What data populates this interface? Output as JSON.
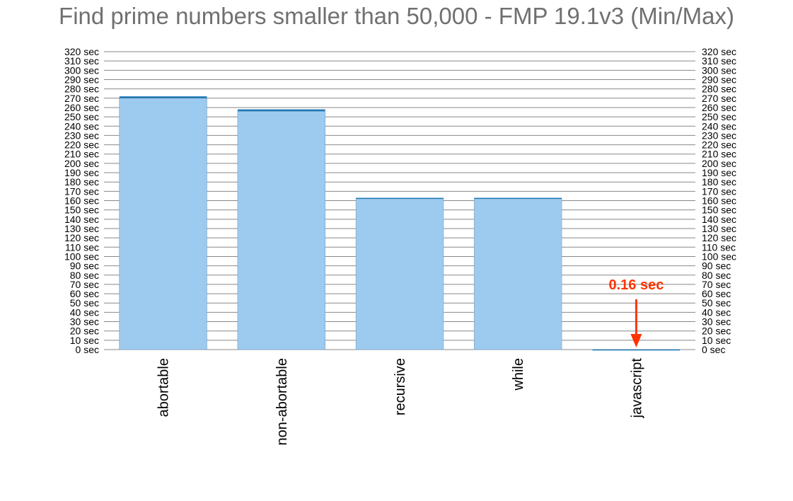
{
  "chart_data": {
    "type": "bar",
    "title": "Find prime numbers smaller than 50,000 - FMP 19.1v3 (Min/Max)",
    "xlabel": "",
    "ylabel": "",
    "categories": [
      "abortable",
      "non-abortable",
      "recursive",
      "while",
      "javascript"
    ],
    "series": [
      {
        "values": [
          270,
          256,
          162,
          162,
          0.16
        ]
      },
      {
        "values": [
          272,
          258,
          163,
          163,
          0.16
        ]
      }
    ],
    "ylim": [
      0,
      320
    ],
    "ytick_step": 10,
    "ytick_suffix": " sec",
    "ytick_labels": [
      "0 sec",
      "10 sec",
      "20 sec",
      "30 sec",
      "40 sec",
      "50 sec",
      "60 sec",
      "70 sec",
      "80 sec",
      "90 sec",
      "100 sec",
      "110 sec",
      "120 sec",
      "130 sec",
      "140 sec",
      "150 sec",
      "160 sec",
      "170 sec",
      "180 sec",
      "190 sec",
      "200 sec",
      "210 sec",
      "220 sec",
      "230 sec",
      "240 sec",
      "250 sec",
      "260 sec",
      "270 sec",
      "280 sec",
      "290 sec",
      "300 sec",
      "310 sec",
      "320 sec"
    ],
    "axes": "left-and-right",
    "grid": true,
    "annotations": [
      {
        "text": "0.16 sec",
        "category": "javascript",
        "arrow": "down"
      }
    ],
    "colors": {
      "bar_fill": "#9dcbf0",
      "bar_max_cap": "#1f78b4",
      "gridline": "#888888",
      "annotation": "#ff3300",
      "title": "#707070"
    }
  }
}
